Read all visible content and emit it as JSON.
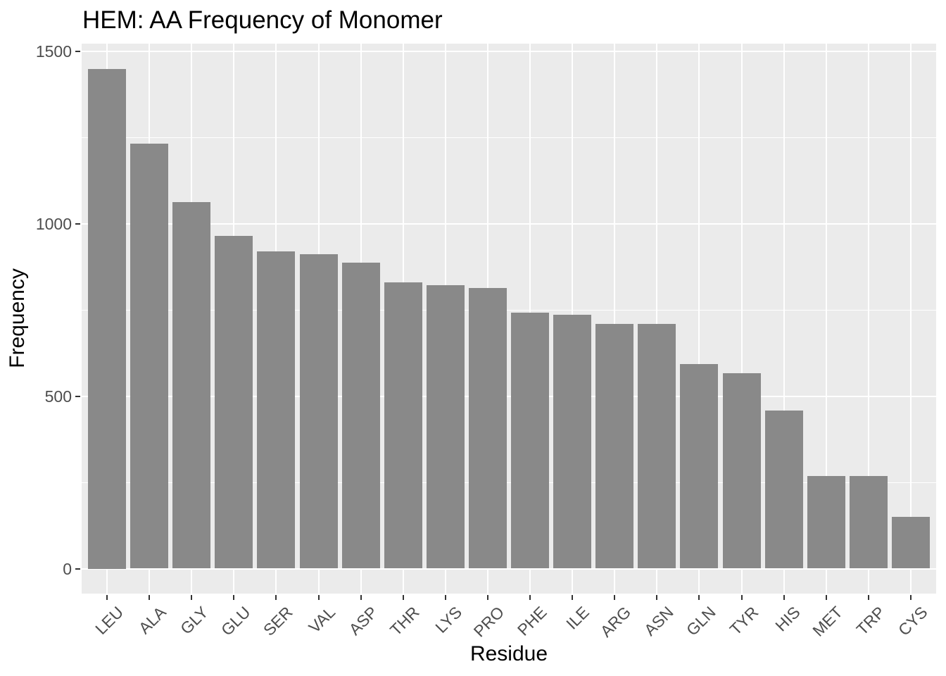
{
  "chart_data": {
    "type": "bar",
    "title": "HEM: AA Frequency of Monomer",
    "xlabel": "Residue",
    "ylabel": "Frequency",
    "categories": [
      "LEU",
      "ALA",
      "GLY",
      "GLU",
      "SER",
      "VAL",
      "ASP",
      "THR",
      "LYS",
      "PRO",
      "PHE",
      "ILE",
      "ARG",
      "ASN",
      "GLN",
      "TYR",
      "HIS",
      "MET",
      "TRP",
      "CYS"
    ],
    "values": [
      1450,
      1232,
      1062,
      964,
      921,
      911,
      887,
      830,
      821,
      813,
      743,
      737,
      710,
      709,
      594,
      566,
      459,
      268,
      268,
      150
    ],
    "y_ticks": [
      0,
      500,
      1000,
      1500
    ],
    "y_minor_ticks": [
      250,
      750,
      1250
    ],
    "ylim": [
      0,
      1500
    ],
    "grid": "on",
    "legend": "none",
    "style": {
      "bar_fill": "#898989",
      "panel_background": "#EBEBEB",
      "grid_color": "#FFFFFF",
      "tick_label_color": "#4D4D4D",
      "tick_mark_color": "#333333",
      "title_color": "#000000"
    }
  }
}
